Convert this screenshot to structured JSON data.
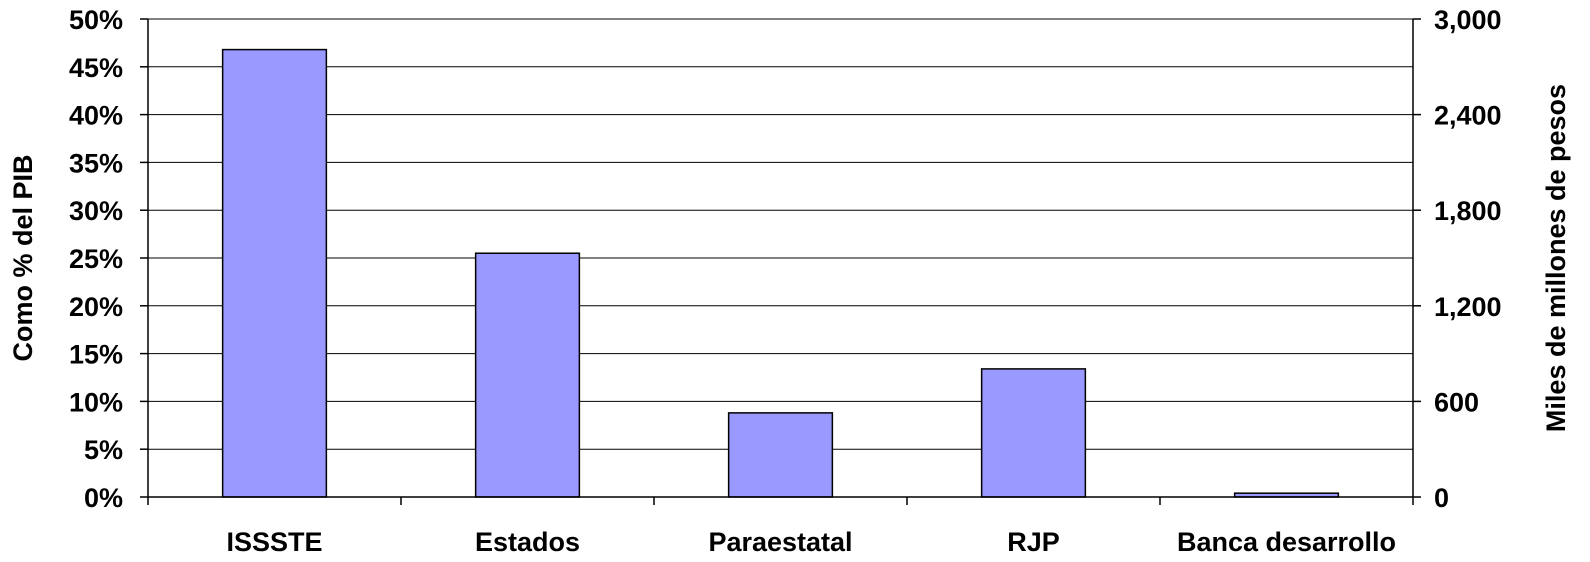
{
  "chart_data": {
    "type": "bar",
    "categories": [
      "ISSSTE",
      "Estados",
      "Paraestatal",
      "RJP",
      "Banca desarrollo"
    ],
    "series": [
      {
        "name": "",
        "values": [
          46.8,
          25.5,
          8.8,
          13.4,
          0.4
        ],
        "color": "#9999ff"
      }
    ],
    "ylabel": "Como % del PIB",
    "y2label": "Miles de millones de pesos",
    "ylim": [
      0,
      50
    ],
    "y2lim": [
      0,
      3000
    ],
    "yticks": [
      "0%",
      "5%",
      "10%",
      "15%",
      "20%",
      "25%",
      "30%",
      "35%",
      "40%",
      "45%",
      "50%"
    ],
    "y2ticks": [
      "0",
      "600",
      "1,200",
      "1,800",
      "2,400",
      "3,000"
    ],
    "grid": true,
    "legend": "none",
    "bar_color": "#9999ff",
    "axis_color": "#000000"
  }
}
